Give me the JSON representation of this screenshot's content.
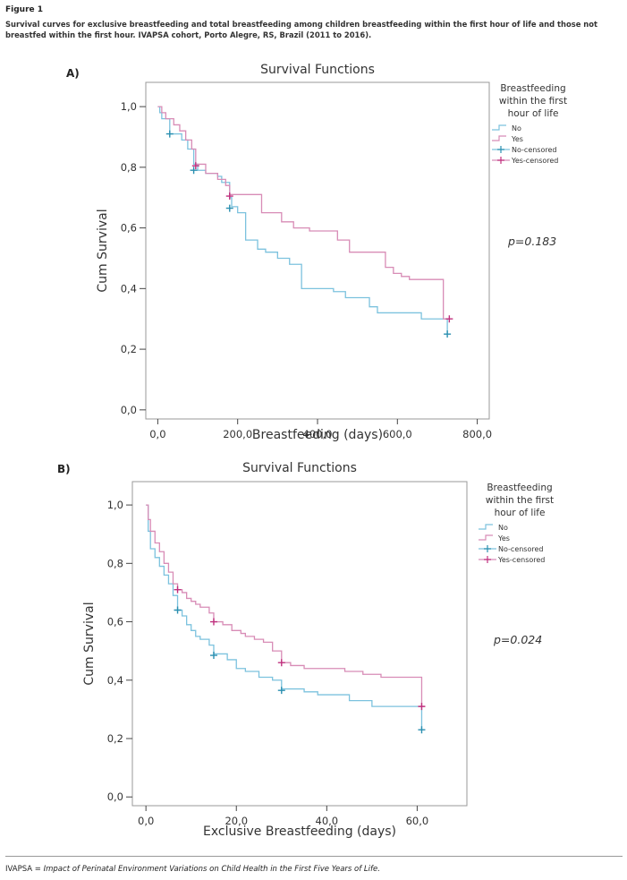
{
  "figure": {
    "label": "Figure 1",
    "caption": "Survival curves for exclusive breastfeeding and total breastfeeding among children breastfeeding within the first hour of life and those not breastfed within the first hour. IVAPSA cohort, Porto Alegre, RS, Brazil (2011 to 2016).",
    "footnote_abbrev": "IVAPSA = ",
    "footnote_text": "Impact of Perinatal Environment Variations on Child Health in the First Five Years of Life."
  },
  "colors": {
    "no": "#7cc2de",
    "yes": "#d88cb6",
    "no_marker": "#2a8fb0",
    "yes_marker": "#c0307e",
    "frame": "#9a9a9a"
  },
  "chart_data": [
    {
      "panel_label": "A)",
      "type": "line",
      "title": "Survival Functions",
      "xlabel": "Breastfeeding (days)",
      "ylabel": "Cum Survival",
      "xlim": [
        -30,
        830
      ],
      "ylim": [
        -0.03,
        1.08
      ],
      "xticks": [
        0,
        200,
        400,
        600,
        800
      ],
      "xtick_labels": [
        "0,0",
        "200,0",
        "400,0",
        "600,0",
        "800,0"
      ],
      "yticks": [
        0,
        0.2,
        0.4,
        0.6,
        0.8,
        1.0
      ],
      "ytick_labels": [
        "0,0",
        "0,2",
        "0,4",
        "0,6",
        "0,8",
        "1,0"
      ],
      "legend_title": [
        "Breastfeeding",
        "within the first",
        "hour of life"
      ],
      "legend": [
        "No",
        "Yes",
        "No-censored",
        "Yes-censored"
      ],
      "legend_position": "right",
      "annotation": "p=0.183",
      "series": [
        {
          "name": "No",
          "color": "#7cc2de",
          "steps": [
            [
              0,
              1.0
            ],
            [
              5,
              0.98
            ],
            [
              10,
              0.96
            ],
            [
              30,
              0.91
            ],
            [
              60,
              0.89
            ],
            [
              75,
              0.86
            ],
            [
              90,
              0.81
            ],
            [
              100,
              0.79
            ],
            [
              120,
              0.78
            ],
            [
              150,
              0.77
            ],
            [
              160,
              0.75
            ],
            [
              180,
              0.7
            ],
            [
              185,
              0.67
            ],
            [
              200,
              0.65
            ],
            [
              220,
              0.56
            ],
            [
              250,
              0.53
            ],
            [
              270,
              0.52
            ],
            [
              300,
              0.5
            ],
            [
              330,
              0.48
            ],
            [
              360,
              0.4
            ],
            [
              420,
              0.4
            ],
            [
              440,
              0.39
            ],
            [
              470,
              0.37
            ],
            [
              530,
              0.34
            ],
            [
              550,
              0.32
            ],
            [
              650,
              0.32
            ],
            [
              660,
              0.3
            ],
            [
              720,
              0.3
            ],
            [
              725,
              0.25
            ]
          ],
          "censored": [
            [
              30,
              0.91
            ],
            [
              90,
              0.79
            ],
            [
              180,
              0.665
            ],
            [
              725,
              0.25
            ]
          ]
        },
        {
          "name": "Yes",
          "color": "#d88cb6",
          "steps": [
            [
              0,
              1.0
            ],
            [
              10,
              0.98
            ],
            [
              20,
              0.96
            ],
            [
              40,
              0.94
            ],
            [
              55,
              0.92
            ],
            [
              70,
              0.89
            ],
            [
              85,
              0.86
            ],
            [
              95,
              0.81
            ],
            [
              120,
              0.78
            ],
            [
              150,
              0.76
            ],
            [
              170,
              0.74
            ],
            [
              180,
              0.71
            ],
            [
              250,
              0.71
            ],
            [
              260,
              0.65
            ],
            [
              300,
              0.65
            ],
            [
              310,
              0.62
            ],
            [
              340,
              0.6
            ],
            [
              380,
              0.59
            ],
            [
              450,
              0.56
            ],
            [
              480,
              0.52
            ],
            [
              560,
              0.52
            ],
            [
              570,
              0.47
            ],
            [
              590,
              0.45
            ],
            [
              610,
              0.44
            ],
            [
              630,
              0.43
            ],
            [
              710,
              0.43
            ],
            [
              715,
              0.3
            ],
            [
              730,
              0.3
            ]
          ],
          "censored": [
            [
              95,
              0.805
            ],
            [
              180,
              0.705
            ],
            [
              730,
              0.3
            ]
          ]
        }
      ]
    },
    {
      "panel_label": "B)",
      "type": "line",
      "title": "Survival Functions",
      "xlabel": "Exclusive Breastfeeding (days)",
      "ylabel": "Cum Survival",
      "xlim": [
        -3,
        71
      ],
      "ylim": [
        -0.03,
        1.08
      ],
      "xticks": [
        0,
        20,
        40,
        60
      ],
      "xtick_labels": [
        "0,0",
        "20,0",
        "40,0",
        "60,0"
      ],
      "yticks": [
        0,
        0.2,
        0.4,
        0.6,
        0.8,
        1.0
      ],
      "ytick_labels": [
        "0,0",
        "0,2",
        "0,4",
        "0,6",
        "0,8",
        "1,0"
      ],
      "legend_title": [
        "Breastfeeding",
        "within the first",
        "hour of life"
      ],
      "legend": [
        "No",
        "Yes",
        "No-censored",
        "Yes-censored"
      ],
      "legend_position": "right",
      "annotation": "p=0.024",
      "series": [
        {
          "name": "No",
          "color": "#7cc2de",
          "steps": [
            [
              0,
              1.0
            ],
            [
              0.5,
              0.91
            ],
            [
              1,
              0.85
            ],
            [
              2,
              0.82
            ],
            [
              3,
              0.79
            ],
            [
              4,
              0.76
            ],
            [
              5,
              0.73
            ],
            [
              6,
              0.69
            ],
            [
              7,
              0.64
            ],
            [
              8,
              0.62
            ],
            [
              9,
              0.59
            ],
            [
              10,
              0.57
            ],
            [
              11,
              0.55
            ],
            [
              12,
              0.54
            ],
            [
              14,
              0.52
            ],
            [
              15,
              0.49
            ],
            [
              18,
              0.47
            ],
            [
              20,
              0.44
            ],
            [
              22,
              0.43
            ],
            [
              25,
              0.41
            ],
            [
              28,
              0.4
            ],
            [
              30,
              0.37
            ],
            [
              35,
              0.36
            ],
            [
              38,
              0.35
            ],
            [
              44,
              0.35
            ],
            [
              45,
              0.33
            ],
            [
              50,
              0.31
            ],
            [
              60,
              0.31
            ],
            [
              61,
              0.23
            ]
          ],
          "censored": [
            [
              7,
              0.64
            ],
            [
              15,
              0.485
            ],
            [
              30,
              0.365
            ],
            [
              61,
              0.23
            ]
          ]
        },
        {
          "name": "Yes",
          "color": "#d88cb6",
          "steps": [
            [
              0,
              1.0
            ],
            [
              0.5,
              0.95
            ],
            [
              1,
              0.91
            ],
            [
              2,
              0.87
            ],
            [
              3,
              0.84
            ],
            [
              4,
              0.8
            ],
            [
              5,
              0.77
            ],
            [
              6,
              0.73
            ],
            [
              7,
              0.71
            ],
            [
              8,
              0.7
            ],
            [
              9,
              0.68
            ],
            [
              10,
              0.67
            ],
            [
              11,
              0.66
            ],
            [
              12,
              0.65
            ],
            [
              14,
              0.63
            ],
            [
              15,
              0.6
            ],
            [
              17,
              0.59
            ],
            [
              19,
              0.57
            ],
            [
              21,
              0.56
            ],
            [
              22,
              0.55
            ],
            [
              24,
              0.54
            ],
            [
              26,
              0.53
            ],
            [
              28,
              0.5
            ],
            [
              30,
              0.46
            ],
            [
              32,
              0.45
            ],
            [
              35,
              0.44
            ],
            [
              42,
              0.44
            ],
            [
              44,
              0.43
            ],
            [
              48,
              0.42
            ],
            [
              52,
              0.41
            ],
            [
              60,
              0.41
            ],
            [
              61,
              0.31
            ]
          ],
          "censored": [
            [
              7,
              0.71
            ],
            [
              15,
              0.6
            ],
            [
              30,
              0.46
            ],
            [
              61,
              0.31
            ]
          ]
        }
      ]
    }
  ]
}
